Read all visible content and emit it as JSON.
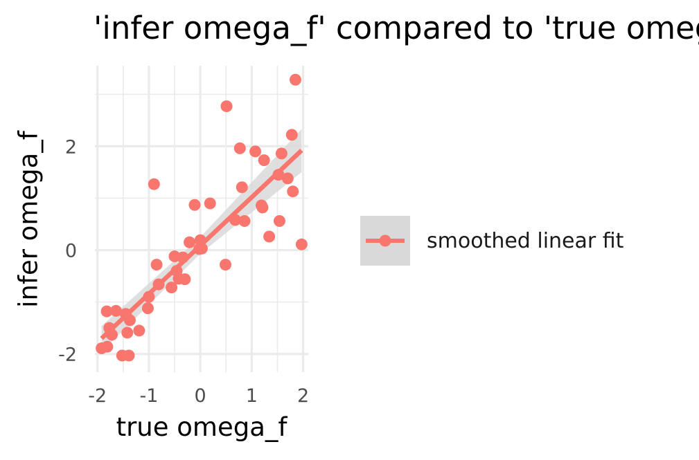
{
  "chart_data": {
    "type": "scatter",
    "title": "'infer omega_f' compared to 'true omega_f'",
    "xlabel": "true omega_f",
    "ylabel": "infer omega_f",
    "xlim": [
      -2.05,
      2.1
    ],
    "ylim": [
      -2.35,
      3.55
    ],
    "xticks": [
      -2,
      -1,
      0,
      1,
      2
    ],
    "xtick_labels": [
      "-2",
      "-1",
      "0",
      "1",
      "2"
    ],
    "yticks": [
      -2,
      0,
      2
    ],
    "ytick_labels": [
      "-2",
      "0",
      "2"
    ],
    "grid": true,
    "legend_position": "right",
    "series": [
      {
        "name": "smoothed linear fit",
        "color": "#F8766D",
        "points": [
          [
            1.85,
            3.28
          ],
          [
            0.51,
            2.77
          ],
          [
            1.78,
            2.22
          ],
          [
            0.77,
            1.96
          ],
          [
            1.07,
            1.9
          ],
          [
            1.58,
            1.86
          ],
          [
            1.24,
            1.73
          ],
          [
            1.52,
            1.45
          ],
          [
            1.7,
            1.38
          ],
          [
            -0.9,
            1.27
          ],
          [
            0.81,
            1.21
          ],
          [
            1.8,
            1.13
          ],
          [
            0.19,
            0.9
          ],
          [
            -0.11,
            0.87
          ],
          [
            1.19,
            0.86
          ],
          [
            1.21,
            0.82
          ],
          [
            0.68,
            0.58
          ],
          [
            0.86,
            0.56
          ],
          [
            1.54,
            0.56
          ],
          [
            1.34,
            0.26
          ],
          [
            -0.21,
            0.15
          ],
          [
            0.0,
            0.19
          ],
          [
            1.97,
            0.11
          ],
          [
            -0.02,
            0.02
          ],
          [
            0.03,
            0.03
          ],
          [
            -0.5,
            -0.12
          ],
          [
            -0.34,
            -0.14
          ],
          [
            -0.85,
            -0.28
          ],
          [
            0.49,
            -0.28
          ],
          [
            -0.46,
            -0.4
          ],
          [
            -0.42,
            -0.55
          ],
          [
            -0.3,
            -0.56
          ],
          [
            -0.81,
            -0.66
          ],
          [
            -0.56,
            -0.72
          ],
          [
            -1.0,
            -0.9
          ],
          [
            -1.02,
            -1.12
          ],
          [
            -1.82,
            -1.18
          ],
          [
            -1.64,
            -1.17
          ],
          [
            -1.45,
            -1.23
          ],
          [
            -1.37,
            -1.35
          ],
          [
            -1.77,
            -1.5
          ],
          [
            -1.19,
            -1.55
          ],
          [
            -1.42,
            -1.59
          ],
          [
            -1.72,
            -1.63
          ],
          [
            -1.81,
            -1.86
          ],
          [
            -1.92,
            -1.89
          ],
          [
            -1.52,
            -2.03
          ],
          [
            -1.39,
            -2.03
          ]
        ]
      }
    ],
    "fit": {
      "color": "#F8766D",
      "band_color": "#d9d9d9",
      "line": [
        [
          -1.92,
          -1.7
        ],
        [
          1.97,
          1.92
        ]
      ],
      "band_upper": [
        [
          -1.92,
          -1.46
        ],
        [
          0.0,
          0.25
        ],
        [
          1.97,
          2.33
        ]
      ],
      "band_lower": [
        [
          -1.92,
          -1.96
        ],
        [
          0.0,
          -0.07
        ],
        [
          1.97,
          1.5
        ]
      ]
    }
  }
}
